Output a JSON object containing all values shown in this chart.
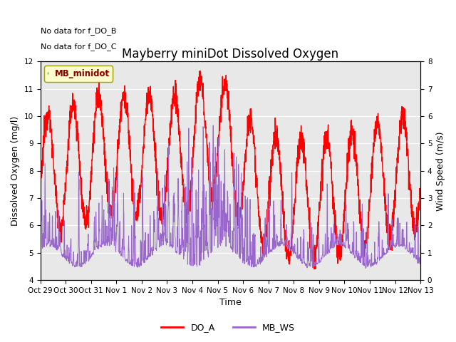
{
  "title": "Mayberry miniDot Dissolved Oxygen",
  "xlabel": "Time",
  "ylabel_left": "Dissolved Oxygen (mg/l)",
  "ylabel_right": "Wind Speed (m/s)",
  "no_data_text_1": "No data for f_DO_B",
  "no_data_text_2": "No data for f_DO_C",
  "legend_box_label": "MB_minidot",
  "ylim_left": [
    4.0,
    12.0
  ],
  "ylim_right": [
    0.0,
    8.0
  ],
  "xtick_labels": [
    "Oct 29",
    "Oct 30",
    "Oct 31",
    "Nov 1",
    "Nov 2",
    "Nov 3",
    "Nov 4",
    "Nov 5",
    "Nov 6",
    "Nov 7",
    "Nov 8",
    "Nov 9",
    "Nov 10",
    "Nov 11",
    "Nov 12",
    "Nov 13"
  ],
  "do_a_color": "#ff0000",
  "mb_ws_color": "#9966cc",
  "background_color": "#ffffff",
  "plot_bg_color": "#e8e8e8",
  "legend_do_a": "DO_A",
  "legend_mb_ws": "MB_WS",
  "title_fontsize": 12,
  "axis_fontsize": 9,
  "tick_fontsize": 7.5
}
